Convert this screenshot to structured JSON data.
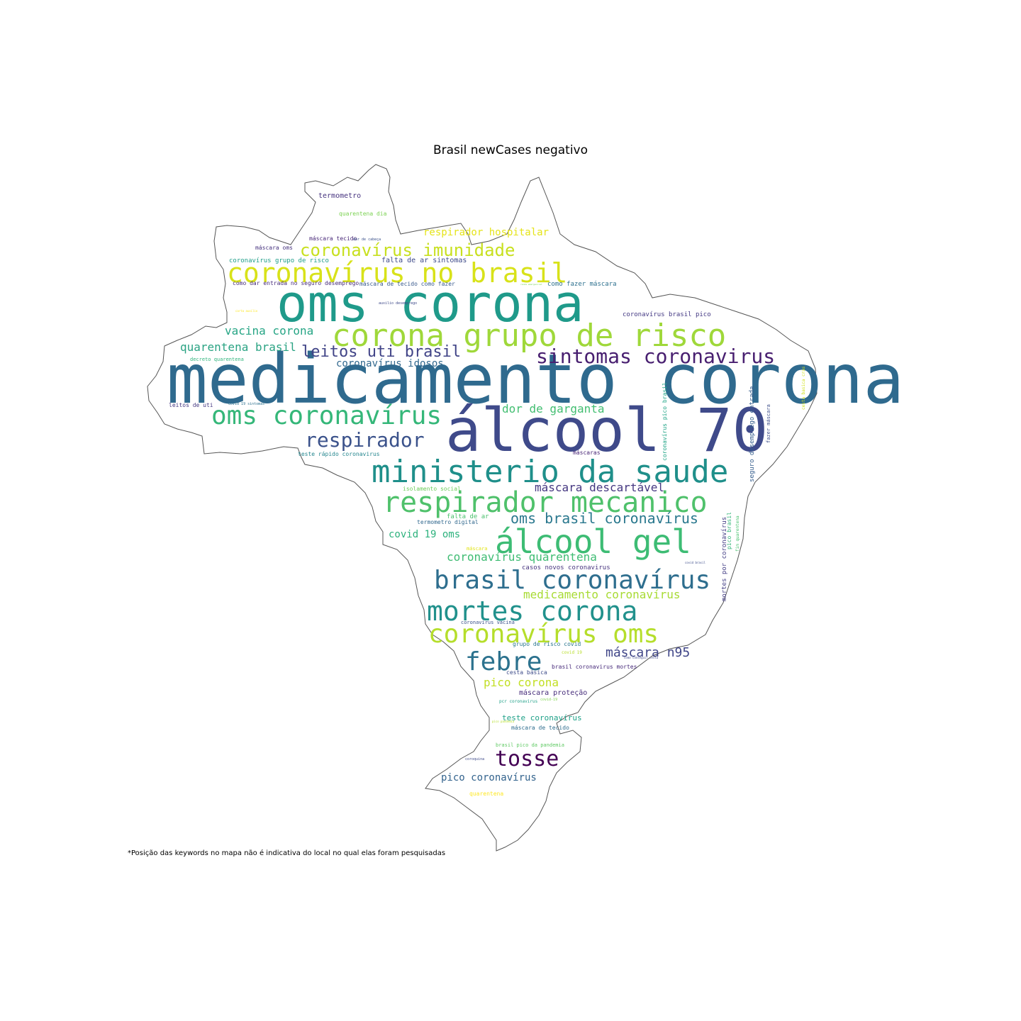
{
  "title": "Brasil newCases negativo",
  "footnote": "*Posição das keywords no mapa não é indicativa do local no qual elas foram pesquisadas",
  "colors": {
    "outline": "#555555",
    "palette": "viridis"
  },
  "words": [
    {
      "text": "medicamento corona",
      "color": "#2f6a8e"
    },
    {
      "text": "álcool 70",
      "color": "#3f4a8a"
    },
    {
      "text": "oms corona",
      "color": "#1f9a8a"
    },
    {
      "text": "corona grupo de risco",
      "color": "#9fd83a"
    },
    {
      "text": "coronavírus no brasil",
      "color": "#d8e219"
    },
    {
      "text": "ministerio da saude",
      "color": "#1f8f8a"
    },
    {
      "text": "respirador mecanico",
      "color": "#4fc16b"
    },
    {
      "text": "oms coronavírus",
      "color": "#35b779"
    },
    {
      "text": "álcool gel",
      "color": "#3dbc74"
    },
    {
      "text": "brasil coronavírus",
      "color": "#2e6e8e"
    },
    {
      "text": "mortes corona",
      "color": "#21918c"
    },
    {
      "text": "coronavírus oms",
      "color": "#b5de2b"
    },
    {
      "text": "sintomas coronavirus",
      "color": "#481f70"
    },
    {
      "text": "coronavírus imunidade",
      "color": "#c8e020"
    },
    {
      "text": "respirador",
      "color": "#3b528b"
    },
    {
      "text": "febre",
      "color": "#2c728e"
    },
    {
      "text": "tosse",
      "color": "#440154"
    },
    {
      "text": "leitos uti brasil",
      "color": "#414487"
    },
    {
      "text": "vacina corona",
      "color": "#26a585"
    },
    {
      "text": "quarentena brasil",
      "color": "#2aa383"
    },
    {
      "text": "dor de garganta",
      "color": "#42be71"
    },
    {
      "text": "máscara descartável",
      "color": "#453781"
    },
    {
      "text": "oms brasil coronavírus",
      "color": "#2a788e"
    },
    {
      "text": "respirador hospitalar",
      "color": "#e5e419"
    },
    {
      "text": "coronavírus idosos",
      "color": "#31688e"
    },
    {
      "text": "medicamento coronavírus",
      "color": "#a8db34"
    },
    {
      "text": "coronavírus quarentena",
      "color": "#3fbc73"
    },
    {
      "text": "covid 19 oms",
      "color": "#2db27d"
    },
    {
      "text": "máscara n95",
      "color": "#404688"
    },
    {
      "text": "pico corona",
      "color": "#c2df23"
    },
    {
      "text": "pico coronavírus",
      "color": "#33638d"
    },
    {
      "text": "teste coronavírus",
      "color": "#1fa188"
    },
    {
      "text": "máscara proteção",
      "color": "#472d7b"
    },
    {
      "text": "termometro",
      "color": "#46337f"
    },
    {
      "text": "quarentena dia",
      "color": "#7ad151"
    },
    {
      "text": "máscara tecido",
      "color": "#482878"
    },
    {
      "text": "dor de cabeça",
      "color": "#3b528b"
    },
    {
      "text": "máscara oms",
      "color": "#46327e"
    },
    {
      "text": "coronavírus grupo de risco",
      "color": "#1f9e89"
    },
    {
      "text": "falta de ar sintomas",
      "color": "#3e4a89"
    },
    {
      "text": "como dar entrada no seguro desemprego",
      "color": "#472c7a"
    },
    {
      "text": "máscara de tecido como fazer",
      "color": "#38598c"
    },
    {
      "text": "como fazer máscara",
      "color": "#2d708e"
    },
    {
      "text": "coronavírus brasil pico",
      "color": "#443983"
    },
    {
      "text": "auxilio desemprego",
      "color": "#3e4989"
    },
    {
      "text": "decreto quarentena",
      "color": "#2fb47c"
    },
    {
      "text": "leitos de uti",
      "color": "#453882"
    },
    {
      "text": "covid 19 sintomas",
      "color": "#2c718e"
    },
    {
      "text": "teste rápido coronavirus",
      "color": "#24868e"
    },
    {
      "text": "máscaras",
      "color": "#482576"
    },
    {
      "text": "isolamento social",
      "color": "#6ccd5a"
    },
    {
      "text": "falta de ar",
      "color": "#4ac16d"
    },
    {
      "text": "termometro digital",
      "color": "#31688e"
    },
    {
      "text": "máscara",
      "color": "#e2e418"
    },
    {
      "text": "casos novos coronavirus",
      "color": "#46337e"
    },
    {
      "text": "coronavirus vacina",
      "color": "#3b528b"
    },
    {
      "text": "grupo de risco covid",
      "color": "#2a768e"
    },
    {
      "text": "covid 19",
      "color": "#b8de29"
    },
    {
      "text": "cesta básica",
      "color": "#3e4c8a"
    },
    {
      "text": "brasil coronavirus mortes",
      "color": "#472a7a"
    },
    {
      "text": "pcr coronavirus",
      "color": "#1fa088"
    },
    {
      "text": "covid-19",
      "color": "#7fd34e"
    },
    {
      "text": "máscara de tecido",
      "color": "#2e6d8e"
    },
    {
      "text": "brasil pico da pandemia",
      "color": "#5ec962"
    },
    {
      "text": "coroquina",
      "color": "#3e4a89"
    },
    {
      "text": "quarentena",
      "color": "#fde725"
    },
    {
      "text": "coronavírus pico brasil",
      "color": "#20a486"
    },
    {
      "text": "seguro desemprego entrada",
      "color": "#355e8d"
    },
    {
      "text": "fazer máscara",
      "color": "#3d4e8a"
    },
    {
      "text": "cesta basica cras",
      "color": "#d0e11c"
    },
    {
      "text": "mortes por coronavírus",
      "color": "#433e85"
    },
    {
      "text": "pico brasil",
      "color": "#34b679"
    },
    {
      "text": "fim quarentena",
      "color": "#48c16e"
    },
    {
      "text": "covid brasil",
      "color": "#3d4d8a"
    },
    {
      "text": "renda emergencial",
      "color": "#75d054"
    },
    {
      "text": "carta auxilio",
      "color": "#fde725"
    },
    {
      "text": "pico pandemia",
      "color": "#b5de2b"
    },
    {
      "text": "como conseguir cesta",
      "color": "#3f4889"
    }
  ]
}
